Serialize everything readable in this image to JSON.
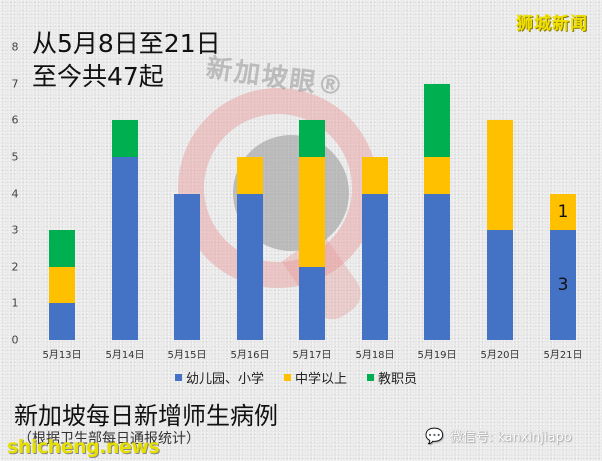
{
  "header": {
    "line1": "从5月8日至21日",
    "line2": "至今共47起",
    "brand": "狮城新闻"
  },
  "watermark": {
    "text": "新加坡眼®"
  },
  "colors": {
    "kindergarten_primary": "#4472c4",
    "secondary_above": "#ffc000",
    "staff": "#00b050"
  },
  "legend": {
    "items": [
      {
        "label": "幼儿园、小学",
        "color": "#4472c4"
      },
      {
        "label": "中学以上",
        "color": "#ffc000"
      },
      {
        "label": "教职员",
        "color": "#00b050"
      }
    ]
  },
  "footer": {
    "title": "新加坡每日新增师生病例",
    "subtitle": "（根据卫生部每日通报统计）",
    "site": "shicheng.news",
    "wechat": "微信号: kanxinjiapo"
  },
  "chart_data": {
    "type": "bar",
    "stacked": true,
    "title": "新加坡每日新增师生病例",
    "subtitle": "（根据卫生部每日通报统计）",
    "annotation": "从5月8日至21日 至今共47起",
    "xlabel": "",
    "ylabel": "",
    "ylim": [
      0,
      8
    ],
    "yticks": [
      0,
      1,
      2,
      3,
      4,
      5,
      6,
      7,
      8
    ],
    "grid": false,
    "legend_position": "bottom",
    "categories": [
      "5月13日",
      "5月14日",
      "5月15日",
      "5月16日",
      "5月17日",
      "5月18日",
      "5月19日",
      "5月20日",
      "5月21日"
    ],
    "series": [
      {
        "name": "幼儿园、小学",
        "color": "#4472c4",
        "values": [
          1,
          5,
          4,
          4,
          2,
          4,
          4,
          3,
          3
        ]
      },
      {
        "name": "中学以上",
        "color": "#ffc000",
        "values": [
          1,
          0,
          0,
          1,
          3,
          1,
          1,
          3,
          1
        ]
      },
      {
        "name": "教职员",
        "color": "#00b050",
        "values": [
          1,
          1,
          0,
          0,
          1,
          0,
          2,
          0,
          0
        ]
      }
    ],
    "data_labels": [
      {
        "category": "5月21日",
        "series": "幼儿园、小学",
        "text": "3"
      },
      {
        "category": "5月21日",
        "series": "中学以上",
        "text": "1"
      }
    ]
  }
}
